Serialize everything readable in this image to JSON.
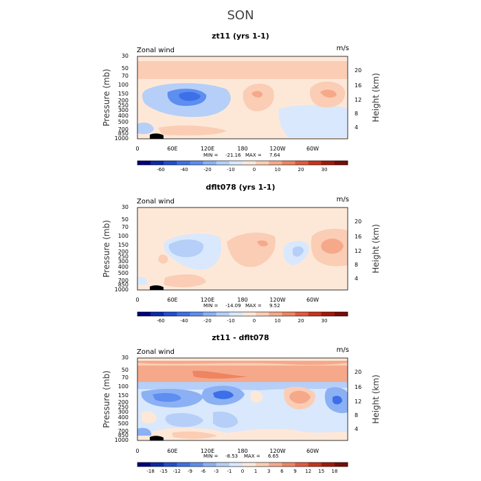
{
  "figure_title": "SON",
  "chart_data": [
    {
      "type": "contour",
      "title": "zt11 (yrs 1-1)",
      "field_label": "Zonal wind",
      "units": "m/s",
      "xlabel": "",
      "ylabel": "Pressure (mb)",
      "y2label": "Height (km)",
      "x_ticks": [
        "0",
        "60E",
        "120E",
        "180",
        "120W",
        "60W"
      ],
      "y_ticks": [
        "30",
        "50",
        "70",
        "100",
        "150",
        "200",
        "250",
        "300",
        "400",
        "500",
        "700",
        "850",
        "1000"
      ],
      "y2_ticks": [
        "20",
        "16",
        "12",
        "8",
        "4"
      ],
      "stats": {
        "min_label": "MIN =",
        "min": "-21.16",
        "max_label": "MAX =",
        "max": "7.64"
      },
      "colorbar": {
        "colors": [
          "#00007c",
          "#0a2aa8",
          "#1f4fd0",
          "#3d6fe8",
          "#5d8ef0",
          "#8bb0f4",
          "#b5cff8",
          "#d9e8fc",
          "#fde8d8",
          "#fbcdb5",
          "#f5a98a",
          "#ee8461",
          "#e25a3c",
          "#c83319",
          "#a3190b",
          "#7a0c04"
        ],
        "labels": [
          "-60",
          "-40",
          "-20",
          "-10",
          "0",
          "10",
          "20",
          "30"
        ]
      }
    },
    {
      "type": "contour",
      "title": "dflt078 (yrs 1-1)",
      "field_label": "Zonal wind",
      "units": "m/s",
      "xlabel": "",
      "ylabel": "Pressure (mb)",
      "y2label": "Height (km)",
      "x_ticks": [
        "0",
        "60E",
        "120E",
        "180",
        "120W",
        "60W"
      ],
      "y_ticks": [
        "30",
        "50",
        "70",
        "100",
        "150",
        "200",
        "250",
        "300",
        "400",
        "500",
        "700",
        "850",
        "1000"
      ],
      "y2_ticks": [
        "20",
        "16",
        "12",
        "8",
        "4"
      ],
      "stats": {
        "min_label": "MIN =",
        "min": "-14.09",
        "max_label": "MAX =",
        "max": "9.52"
      },
      "colorbar": {
        "colors": [
          "#00007c",
          "#0a2aa8",
          "#1f4fd0",
          "#3d6fe8",
          "#5d8ef0",
          "#8bb0f4",
          "#b5cff8",
          "#d9e8fc",
          "#fde8d8",
          "#fbcdb5",
          "#f5a98a",
          "#ee8461",
          "#e25a3c",
          "#c83319",
          "#a3190b",
          "#7a0c04"
        ],
        "labels": [
          "-60",
          "-40",
          "-20",
          "-10",
          "0",
          "10",
          "20",
          "30"
        ]
      }
    },
    {
      "type": "contour",
      "title": "zt11 - dflt078",
      "field_label": "Zonal wind",
      "units": "m/s",
      "xlabel": "",
      "ylabel": "Pressure (mb)",
      "y2label": "Height (km)",
      "x_ticks": [
        "0",
        "60E",
        "120E",
        "180",
        "120W",
        "60W"
      ],
      "y_ticks": [
        "30",
        "50",
        "70",
        "100",
        "150",
        "200",
        "250",
        "300",
        "400",
        "500",
        "700",
        "850",
        "1000"
      ],
      "y2_ticks": [
        "20",
        "16",
        "12",
        "8",
        "4"
      ],
      "stats": {
        "min_label": "MIN =",
        "min": "-8.53",
        "max_label": "MAX =",
        "max": "6.65"
      },
      "colorbar": {
        "colors": [
          "#00007c",
          "#0a2aa8",
          "#1f4fd0",
          "#3d6fe8",
          "#5d8ef0",
          "#8bb0f4",
          "#b5cff8",
          "#d9e8fc",
          "#fde8d8",
          "#fbcdb5",
          "#f5a98a",
          "#ee8461",
          "#e25a3c",
          "#c83319",
          "#a3190b",
          "#7a0c04"
        ],
        "labels": [
          "-18",
          "-15",
          "-12",
          "-9",
          "-6",
          "-3",
          "-1",
          "0",
          "1",
          "3",
          "6",
          "9",
          "12",
          "15",
          "18"
        ]
      }
    }
  ]
}
